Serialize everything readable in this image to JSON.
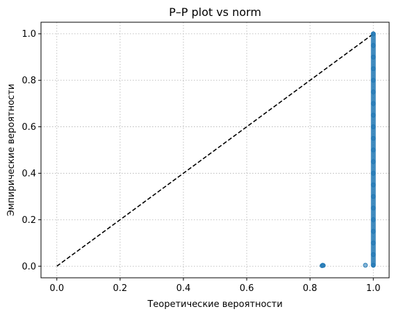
{
  "chart_data": {
    "type": "scatter",
    "title": "P–P plot vs norm",
    "xlabel": "Теоретические вероятности",
    "ylabel": "Эмпирические вероятности",
    "xlim": [
      -0.05,
      1.05
    ],
    "ylim": [
      -0.05,
      1.05
    ],
    "xticks": [
      0.0,
      0.2,
      0.4,
      0.6,
      0.8,
      1.0
    ],
    "yticks": [
      0.0,
      0.2,
      0.4,
      0.6,
      0.8,
      1.0
    ],
    "xtick_labels": [
      "0.0",
      "0.2",
      "0.4",
      "0.6",
      "0.8",
      "1.0"
    ],
    "ytick_labels": [
      "0.0",
      "0.2",
      "0.4",
      "0.6",
      "0.8",
      "1.0"
    ],
    "grid": true,
    "reference_line": {
      "x": [
        0,
        1
      ],
      "y": [
        0,
        1
      ],
      "style": "dashed",
      "color": "#000000"
    },
    "series": [
      {
        "color": "#1f77b4",
        "points": [
          {
            "x": 0.838,
            "y": 0.002
          },
          {
            "x": 0.842,
            "y": 0.003
          },
          {
            "x": 0.84,
            "y": 0.004
          },
          {
            "x": 0.975,
            "y": 0.004
          },
          {
            "x": 1.0,
            "y": 0.004
          },
          {
            "x": 1.0,
            "y": 0.05
          },
          {
            "x": 1.0,
            "y": 0.1
          },
          {
            "x": 1.0,
            "y": 0.15
          },
          {
            "x": 1.0,
            "y": 0.2
          },
          {
            "x": 1.0,
            "y": 0.25
          },
          {
            "x": 1.0,
            "y": 0.3
          },
          {
            "x": 1.0,
            "y": 0.35
          },
          {
            "x": 1.0,
            "y": 0.4
          },
          {
            "x": 1.0,
            "y": 0.45
          },
          {
            "x": 1.0,
            "y": 0.5
          },
          {
            "x": 1.0,
            "y": 0.55
          },
          {
            "x": 1.0,
            "y": 0.6
          },
          {
            "x": 1.0,
            "y": 0.65
          },
          {
            "x": 1.0,
            "y": 0.7
          },
          {
            "x": 1.0,
            "y": 0.75
          },
          {
            "x": 1.0,
            "y": 0.8
          },
          {
            "x": 1.0,
            "y": 0.85
          },
          {
            "x": 1.0,
            "y": 0.9
          },
          {
            "x": 1.0,
            "y": 0.95
          },
          {
            "x": 1.0,
            "y": 1.0
          }
        ]
      }
    ]
  }
}
